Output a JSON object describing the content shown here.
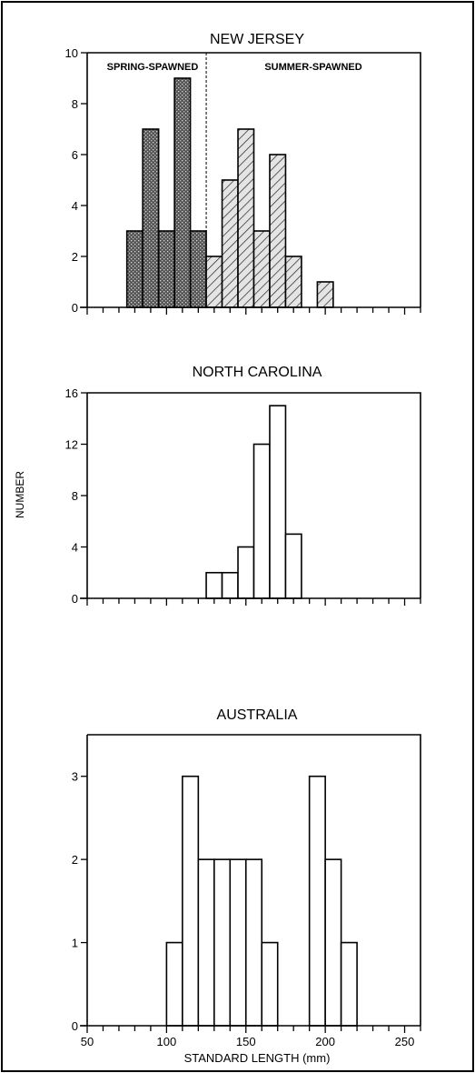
{
  "figure": {
    "ylabel": "NUMBER",
    "xlabel": "STANDARD LENGTH (mm)",
    "colors": {
      "spring_fill": "#555555",
      "summer_fill": "#e4e4e4",
      "plain_fill": "#ffffff",
      "ink": "#000000"
    }
  },
  "chart_data": [
    {
      "type": "bar",
      "title": "NEW JERSEY",
      "x_unit": "mm",
      "bin_width": 10,
      "xlim": [
        50,
        260
      ],
      "ylim": [
        0,
        10
      ],
      "yticks": [
        "0",
        "2",
        "4",
        "6",
        "8",
        "10"
      ],
      "region_labels": {
        "left": "SPRING-SPAWNED",
        "right": "SUMMER-SPAWNED"
      },
      "divider_x": 125,
      "series": [
        {
          "name": "SPRING-SPAWNED",
          "pattern": "dark-stipple",
          "bin_starts": [
            75,
            85,
            95,
            105,
            115
          ],
          "values": [
            3,
            7,
            3,
            9,
            3
          ]
        },
        {
          "name": "SUMMER-SPAWNED",
          "pattern": "light-hatch",
          "bin_starts": [
            125,
            135,
            145,
            155,
            165,
            175,
            185,
            195
          ],
          "values": [
            2,
            5,
            7,
            3,
            6,
            2,
            0,
            1
          ]
        }
      ],
      "grid": false,
      "legend": "none"
    },
    {
      "type": "bar",
      "title": "NORTH CAROLINA",
      "x_unit": "mm",
      "bin_width": 10,
      "xlim": [
        50,
        260
      ],
      "ylim": [
        0,
        16
      ],
      "yticks": [
        "0",
        "4",
        "8",
        "12",
        "16"
      ],
      "series": [
        {
          "bin_starts": [
            125,
            135,
            145,
            155,
            165,
            175
          ],
          "values": [
            2,
            2,
            4,
            12,
            15,
            5
          ]
        }
      ],
      "grid": false,
      "legend": "none"
    },
    {
      "type": "bar",
      "title": "AUSTRALIA",
      "x_unit": "mm",
      "bin_width": 10,
      "xlim": [
        50,
        260
      ],
      "ylim": [
        0,
        3.5
      ],
      "yticks": [
        "0",
        "1",
        "2",
        "3"
      ],
      "xticklabels": [
        "50",
        "100",
        "150",
        "200",
        "250"
      ],
      "series": [
        {
          "bin_starts": [
            100,
            110,
            120,
            130,
            140,
            150,
            160,
            190,
            200,
            210
          ],
          "values": [
            1,
            3,
            2,
            2,
            2,
            2,
            1,
            3,
            2,
            1
          ]
        }
      ],
      "grid": false,
      "legend": "none"
    }
  ]
}
